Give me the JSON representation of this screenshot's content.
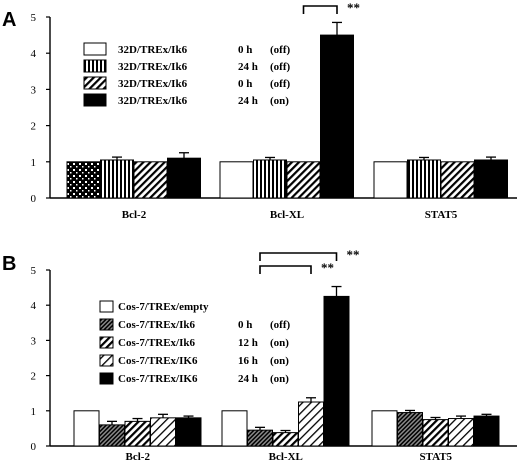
{
  "chart_data": [
    {
      "type": "bar",
      "panel": "A",
      "title": "",
      "xlabel": "",
      "ylabel": "",
      "ylim": [
        0,
        5
      ],
      "yticks": [
        "0",
        "1",
        "2",
        "3",
        "4",
        "5"
      ],
      "categories": [
        "Bcl-2",
        "Bcl-XL",
        "STAT5"
      ],
      "series": [
        {
          "name": "32D/TREx/Ik6",
          "time": "0 h",
          "state": "(off)",
          "fill": "white",
          "values": [
            1.0,
            1.0,
            1.0
          ],
          "errors": [
            0.0,
            0.0,
            0.0
          ]
        },
        {
          "name": "32D/TREx/Ik6",
          "time": "24 h",
          "state": "(off)",
          "fill": "vertical",
          "values": [
            1.05,
            1.05,
            1.05
          ],
          "errors": [
            0.08,
            0.07,
            0.07
          ]
        },
        {
          "name": "32D/TREx/Ik6",
          "time": "0 h",
          "state": "(off)",
          "fill": "diagonal",
          "values": [
            1.0,
            1.0,
            1.0
          ],
          "errors": [
            0.0,
            0.0,
            0.0
          ]
        },
        {
          "name": "32D/TREx/Ik6",
          "time": "24 h",
          "state": "(on)",
          "fill": "black",
          "values": [
            1.1,
            4.5,
            1.05
          ],
          "errors": [
            0.15,
            0.35,
            0.08
          ]
        }
      ],
      "first_bar_fill": "dots",
      "significance": [
        {
          "label": "**",
          "from_category": "Bcl-XL",
          "from_series": 2,
          "to_series": 3
        }
      ],
      "legend_position": "upper-left",
      "grid": false
    },
    {
      "type": "bar",
      "panel": "B",
      "title": "",
      "xlabel": "",
      "ylabel": "",
      "ylim": [
        0,
        5
      ],
      "yticks": [
        "0",
        "1",
        "2",
        "3",
        "4",
        "5"
      ],
      "categories": [
        "Bcl-2",
        "Bcl-XL",
        "STAT5"
      ],
      "series": [
        {
          "name": "Cos-7/TREx/empty",
          "time": "",
          "state": "",
          "fill": "white",
          "values": [
            1.0,
            1.0,
            1.0
          ],
          "errors": [
            0.0,
            0.0,
            0.0
          ]
        },
        {
          "name": "Cos-7/TREx/Ik6",
          "time": "0 h",
          "state": "(off)",
          "fill": "dense",
          "values": [
            0.6,
            0.45,
            0.95
          ],
          "errors": [
            0.1,
            0.08,
            0.06
          ]
        },
        {
          "name": "Cos-7/TREx/Ik6",
          "time": "12 h",
          "state": "(on)",
          "fill": "diagonal",
          "values": [
            0.7,
            0.38,
            0.75
          ],
          "errors": [
            0.08,
            0.06,
            0.06
          ]
        },
        {
          "name": "Cos-7/TREx/IK6",
          "time": "16 h",
          "state": "(on)",
          "fill": "light-diagonal",
          "values": [
            0.8,
            1.25,
            0.78
          ],
          "errors": [
            0.1,
            0.12,
            0.07
          ]
        },
        {
          "name": "Cos-7/TREx/IK6",
          "time": "24 h",
          "state": "(on)",
          "fill": "black",
          "values": [
            0.8,
            4.25,
            0.85
          ],
          "errors": [
            0.05,
            0.28,
            0.05
          ]
        }
      ],
      "significance": [
        {
          "label": "**",
          "from_category": "Bcl-XL",
          "from_series": 1,
          "to_series": 4,
          "level": 2
        },
        {
          "label": "**",
          "from_category": "Bcl-XL",
          "from_series": 1,
          "to_series": 3,
          "level": 1
        }
      ],
      "legend_position": "upper-left",
      "grid": false
    }
  ]
}
